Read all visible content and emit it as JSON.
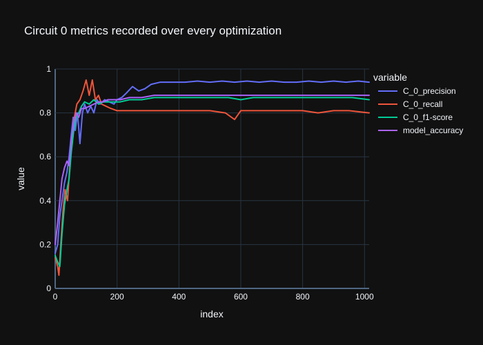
{
  "chart_data": {
    "type": "line",
    "title": "Circuit 0 metrics recorded over every optimization",
    "xlabel": "index",
    "ylabel": "value",
    "xlim": [
      0,
      1015
    ],
    "ylim": [
      0,
      1
    ],
    "x_ticks": [
      0,
      200,
      400,
      600,
      800,
      1000
    ],
    "y_ticks": [
      0,
      0.2,
      0.4,
      0.6,
      0.8,
      1
    ],
    "x_tick_labels": [
      "0",
      "200",
      "400",
      "600",
      "800",
      "1000"
    ],
    "y_tick_labels": [
      "0",
      "0.2",
      "0.4",
      "0.6",
      "0.8",
      "1"
    ],
    "grid": true,
    "legend": {
      "title": "variable",
      "position": "right"
    },
    "series": [
      {
        "name": "C_0_precision",
        "color": "#636efa",
        "points": [
          [
            0,
            0.16
          ],
          [
            8,
            0.2
          ],
          [
            15,
            0.33
          ],
          [
            22,
            0.4
          ],
          [
            30,
            0.48
          ],
          [
            38,
            0.53
          ],
          [
            45,
            0.6
          ],
          [
            52,
            0.7
          ],
          [
            58,
            0.78
          ],
          [
            65,
            0.72
          ],
          [
            72,
            0.8
          ],
          [
            80,
            0.66
          ],
          [
            88,
            0.8
          ],
          [
            95,
            0.84
          ],
          [
            105,
            0.8
          ],
          [
            115,
            0.83
          ],
          [
            125,
            0.8
          ],
          [
            135,
            0.86
          ],
          [
            145,
            0.84
          ],
          [
            160,
            0.86
          ],
          [
            175,
            0.85
          ],
          [
            190,
            0.84
          ],
          [
            200,
            0.86
          ],
          [
            215,
            0.87
          ],
          [
            230,
            0.89
          ],
          [
            250,
            0.92
          ],
          [
            270,
            0.9
          ],
          [
            290,
            0.91
          ],
          [
            310,
            0.93
          ],
          [
            340,
            0.94
          ],
          [
            380,
            0.94
          ],
          [
            420,
            0.94
          ],
          [
            460,
            0.945
          ],
          [
            500,
            0.94
          ],
          [
            540,
            0.945
          ],
          [
            580,
            0.94
          ],
          [
            620,
            0.945
          ],
          [
            660,
            0.94
          ],
          [
            700,
            0.945
          ],
          [
            740,
            0.94
          ],
          [
            780,
            0.94
          ],
          [
            820,
            0.945
          ],
          [
            860,
            0.94
          ],
          [
            900,
            0.945
          ],
          [
            940,
            0.94
          ],
          [
            980,
            0.945
          ],
          [
            1015,
            0.94
          ]
        ]
      },
      {
        "name": "C_0_recall",
        "color": "#ef553b",
        "points": [
          [
            0,
            0.14
          ],
          [
            8,
            0.1
          ],
          [
            12,
            0.06
          ],
          [
            18,
            0.2
          ],
          [
            25,
            0.35
          ],
          [
            32,
            0.45
          ],
          [
            40,
            0.4
          ],
          [
            48,
            0.58
          ],
          [
            55,
            0.7
          ],
          [
            62,
            0.78
          ],
          [
            70,
            0.84
          ],
          [
            80,
            0.86
          ],
          [
            90,
            0.9
          ],
          [
            100,
            0.95
          ],
          [
            110,
            0.88
          ],
          [
            120,
            0.95
          ],
          [
            130,
            0.86
          ],
          [
            140,
            0.88
          ],
          [
            150,
            0.84
          ],
          [
            165,
            0.83
          ],
          [
            180,
            0.82
          ],
          [
            200,
            0.81
          ],
          [
            250,
            0.81
          ],
          [
            300,
            0.81
          ],
          [
            350,
            0.81
          ],
          [
            400,
            0.81
          ],
          [
            450,
            0.81
          ],
          [
            500,
            0.81
          ],
          [
            550,
            0.8
          ],
          [
            580,
            0.77
          ],
          [
            600,
            0.81
          ],
          [
            650,
            0.81
          ],
          [
            700,
            0.81
          ],
          [
            750,
            0.81
          ],
          [
            800,
            0.81
          ],
          [
            850,
            0.8
          ],
          [
            900,
            0.81
          ],
          [
            950,
            0.81
          ],
          [
            1015,
            0.8
          ]
        ]
      },
      {
        "name": "C_0_f1-score",
        "color": "#00cc96",
        "points": [
          [
            0,
            0.15
          ],
          [
            8,
            0.12
          ],
          [
            15,
            0.1
          ],
          [
            22,
            0.25
          ],
          [
            30,
            0.38
          ],
          [
            38,
            0.45
          ],
          [
            45,
            0.5
          ],
          [
            52,
            0.62
          ],
          [
            60,
            0.72
          ],
          [
            68,
            0.78
          ],
          [
            76,
            0.8
          ],
          [
            85,
            0.83
          ],
          [
            95,
            0.85
          ],
          [
            110,
            0.84
          ],
          [
            125,
            0.86
          ],
          [
            140,
            0.84
          ],
          [
            155,
            0.85
          ],
          [
            170,
            0.85
          ],
          [
            190,
            0.85
          ],
          [
            210,
            0.85
          ],
          [
            240,
            0.86
          ],
          [
            280,
            0.86
          ],
          [
            320,
            0.87
          ],
          [
            360,
            0.87
          ],
          [
            400,
            0.87
          ],
          [
            440,
            0.87
          ],
          [
            480,
            0.87
          ],
          [
            520,
            0.87
          ],
          [
            560,
            0.87
          ],
          [
            600,
            0.86
          ],
          [
            640,
            0.87
          ],
          [
            680,
            0.87
          ],
          [
            720,
            0.87
          ],
          [
            760,
            0.87
          ],
          [
            800,
            0.87
          ],
          [
            840,
            0.87
          ],
          [
            880,
            0.87
          ],
          [
            920,
            0.87
          ],
          [
            960,
            0.87
          ],
          [
            1015,
            0.86
          ]
        ]
      },
      {
        "name": "model_accuracy",
        "color": "#ab63fa",
        "points": [
          [
            0,
            0.2
          ],
          [
            8,
            0.3
          ],
          [
            15,
            0.4
          ],
          [
            22,
            0.5
          ],
          [
            30,
            0.55
          ],
          [
            38,
            0.58
          ],
          [
            45,
            0.56
          ],
          [
            52,
            0.68
          ],
          [
            60,
            0.75
          ],
          [
            68,
            0.8
          ],
          [
            76,
            0.78
          ],
          [
            85,
            0.82
          ],
          [
            95,
            0.82
          ],
          [
            110,
            0.83
          ],
          [
            125,
            0.84
          ],
          [
            140,
            0.85
          ],
          [
            155,
            0.85
          ],
          [
            170,
            0.86
          ],
          [
            190,
            0.86
          ],
          [
            210,
            0.86
          ],
          [
            240,
            0.87
          ],
          [
            280,
            0.87
          ],
          [
            320,
            0.88
          ],
          [
            360,
            0.88
          ],
          [
            400,
            0.88
          ],
          [
            440,
            0.88
          ],
          [
            480,
            0.88
          ],
          [
            520,
            0.88
          ],
          [
            560,
            0.88
          ],
          [
            600,
            0.88
          ],
          [
            640,
            0.88
          ],
          [
            680,
            0.88
          ],
          [
            720,
            0.88
          ],
          [
            760,
            0.88
          ],
          [
            800,
            0.88
          ],
          [
            840,
            0.88
          ],
          [
            880,
            0.88
          ],
          [
            920,
            0.88
          ],
          [
            960,
            0.88
          ],
          [
            1015,
            0.88
          ]
        ]
      }
    ]
  }
}
